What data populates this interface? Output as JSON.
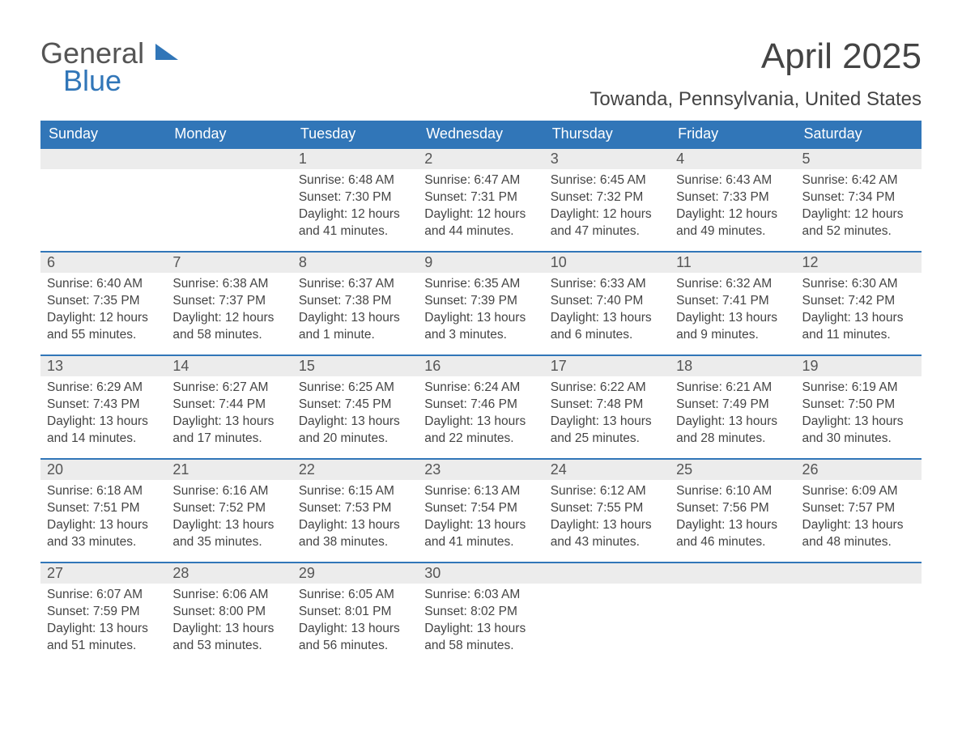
{
  "logo": {
    "general": "General",
    "blue": "Blue"
  },
  "title": "April 2025",
  "location": "Towanda, Pennsylvania, United States",
  "weekdays": [
    "Sunday",
    "Monday",
    "Tuesday",
    "Wednesday",
    "Thursday",
    "Friday",
    "Saturday"
  ],
  "colors": {
    "header_bg": "#3176b8",
    "header_text": "#ffffff",
    "daynum_bg": "#ececec",
    "body_text": "#444444",
    "row_border": "#3176b8"
  },
  "typography": {
    "font_family": "Segoe UI, Arial, sans-serif",
    "title_size_pt": 33,
    "location_size_pt": 18,
    "header_size_pt": 14,
    "daynum_size_pt": 14,
    "body_size_pt": 12
  },
  "weeks": [
    [
      {
        "n": "",
        "sunrise": "",
        "sunset": "",
        "daylight": ""
      },
      {
        "n": "",
        "sunrise": "",
        "sunset": "",
        "daylight": ""
      },
      {
        "n": "1",
        "sunrise": "Sunrise: 6:48 AM",
        "sunset": "Sunset: 7:30 PM",
        "daylight": "Daylight: 12 hours and 41 minutes."
      },
      {
        "n": "2",
        "sunrise": "Sunrise: 6:47 AM",
        "sunset": "Sunset: 7:31 PM",
        "daylight": "Daylight: 12 hours and 44 minutes."
      },
      {
        "n": "3",
        "sunrise": "Sunrise: 6:45 AM",
        "sunset": "Sunset: 7:32 PM",
        "daylight": "Daylight: 12 hours and 47 minutes."
      },
      {
        "n": "4",
        "sunrise": "Sunrise: 6:43 AM",
        "sunset": "Sunset: 7:33 PM",
        "daylight": "Daylight: 12 hours and 49 minutes."
      },
      {
        "n": "5",
        "sunrise": "Sunrise: 6:42 AM",
        "sunset": "Sunset: 7:34 PM",
        "daylight": "Daylight: 12 hours and 52 minutes."
      }
    ],
    [
      {
        "n": "6",
        "sunrise": "Sunrise: 6:40 AM",
        "sunset": "Sunset: 7:35 PM",
        "daylight": "Daylight: 12 hours and 55 minutes."
      },
      {
        "n": "7",
        "sunrise": "Sunrise: 6:38 AM",
        "sunset": "Sunset: 7:37 PM",
        "daylight": "Daylight: 12 hours and 58 minutes."
      },
      {
        "n": "8",
        "sunrise": "Sunrise: 6:37 AM",
        "sunset": "Sunset: 7:38 PM",
        "daylight": "Daylight: 13 hours and 1 minute."
      },
      {
        "n": "9",
        "sunrise": "Sunrise: 6:35 AM",
        "sunset": "Sunset: 7:39 PM",
        "daylight": "Daylight: 13 hours and 3 minutes."
      },
      {
        "n": "10",
        "sunrise": "Sunrise: 6:33 AM",
        "sunset": "Sunset: 7:40 PM",
        "daylight": "Daylight: 13 hours and 6 minutes."
      },
      {
        "n": "11",
        "sunrise": "Sunrise: 6:32 AM",
        "sunset": "Sunset: 7:41 PM",
        "daylight": "Daylight: 13 hours and 9 minutes."
      },
      {
        "n": "12",
        "sunrise": "Sunrise: 6:30 AM",
        "sunset": "Sunset: 7:42 PM",
        "daylight": "Daylight: 13 hours and 11 minutes."
      }
    ],
    [
      {
        "n": "13",
        "sunrise": "Sunrise: 6:29 AM",
        "sunset": "Sunset: 7:43 PM",
        "daylight": "Daylight: 13 hours and 14 minutes."
      },
      {
        "n": "14",
        "sunrise": "Sunrise: 6:27 AM",
        "sunset": "Sunset: 7:44 PM",
        "daylight": "Daylight: 13 hours and 17 minutes."
      },
      {
        "n": "15",
        "sunrise": "Sunrise: 6:25 AM",
        "sunset": "Sunset: 7:45 PM",
        "daylight": "Daylight: 13 hours and 20 minutes."
      },
      {
        "n": "16",
        "sunrise": "Sunrise: 6:24 AM",
        "sunset": "Sunset: 7:46 PM",
        "daylight": "Daylight: 13 hours and 22 minutes."
      },
      {
        "n": "17",
        "sunrise": "Sunrise: 6:22 AM",
        "sunset": "Sunset: 7:48 PM",
        "daylight": "Daylight: 13 hours and 25 minutes."
      },
      {
        "n": "18",
        "sunrise": "Sunrise: 6:21 AM",
        "sunset": "Sunset: 7:49 PM",
        "daylight": "Daylight: 13 hours and 28 minutes."
      },
      {
        "n": "19",
        "sunrise": "Sunrise: 6:19 AM",
        "sunset": "Sunset: 7:50 PM",
        "daylight": "Daylight: 13 hours and 30 minutes."
      }
    ],
    [
      {
        "n": "20",
        "sunrise": "Sunrise: 6:18 AM",
        "sunset": "Sunset: 7:51 PM",
        "daylight": "Daylight: 13 hours and 33 minutes."
      },
      {
        "n": "21",
        "sunrise": "Sunrise: 6:16 AM",
        "sunset": "Sunset: 7:52 PM",
        "daylight": "Daylight: 13 hours and 35 minutes."
      },
      {
        "n": "22",
        "sunrise": "Sunrise: 6:15 AM",
        "sunset": "Sunset: 7:53 PM",
        "daylight": "Daylight: 13 hours and 38 minutes."
      },
      {
        "n": "23",
        "sunrise": "Sunrise: 6:13 AM",
        "sunset": "Sunset: 7:54 PM",
        "daylight": "Daylight: 13 hours and 41 minutes."
      },
      {
        "n": "24",
        "sunrise": "Sunrise: 6:12 AM",
        "sunset": "Sunset: 7:55 PM",
        "daylight": "Daylight: 13 hours and 43 minutes."
      },
      {
        "n": "25",
        "sunrise": "Sunrise: 6:10 AM",
        "sunset": "Sunset: 7:56 PM",
        "daylight": "Daylight: 13 hours and 46 minutes."
      },
      {
        "n": "26",
        "sunrise": "Sunrise: 6:09 AM",
        "sunset": "Sunset: 7:57 PM",
        "daylight": "Daylight: 13 hours and 48 minutes."
      }
    ],
    [
      {
        "n": "27",
        "sunrise": "Sunrise: 6:07 AM",
        "sunset": "Sunset: 7:59 PM",
        "daylight": "Daylight: 13 hours and 51 minutes."
      },
      {
        "n": "28",
        "sunrise": "Sunrise: 6:06 AM",
        "sunset": "Sunset: 8:00 PM",
        "daylight": "Daylight: 13 hours and 53 minutes."
      },
      {
        "n": "29",
        "sunrise": "Sunrise: 6:05 AM",
        "sunset": "Sunset: 8:01 PM",
        "daylight": "Daylight: 13 hours and 56 minutes."
      },
      {
        "n": "30",
        "sunrise": "Sunrise: 6:03 AM",
        "sunset": "Sunset: 8:02 PM",
        "daylight": "Daylight: 13 hours and 58 minutes."
      },
      {
        "n": "",
        "sunrise": "",
        "sunset": "",
        "daylight": ""
      },
      {
        "n": "",
        "sunrise": "",
        "sunset": "",
        "daylight": ""
      },
      {
        "n": "",
        "sunrise": "",
        "sunset": "",
        "daylight": ""
      }
    ]
  ]
}
